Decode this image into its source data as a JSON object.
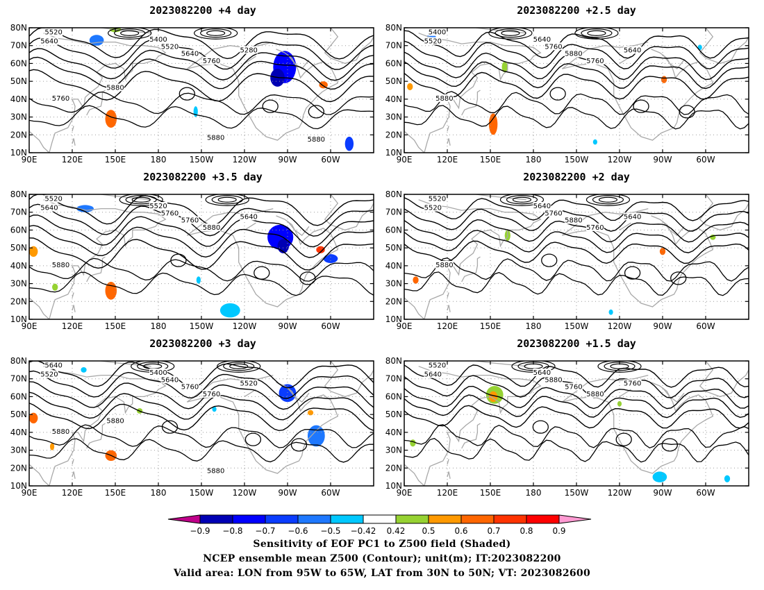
{
  "panels": [
    {
      "id": "p1",
      "title": "2023082200  +4 day",
      "contour_labels": [
        "5520",
        "5640",
        "5400",
        "5280",
        "5520",
        "5640",
        "5760",
        "5760",
        "5880",
        "5880",
        "5880"
      ],
      "shading": [
        {
          "lon": 137,
          "lat": 73,
          "rx": 5,
          "ry": 3,
          "value": -0.6
        },
        {
          "lon": 268,
          "lat": 58,
          "rx": 8,
          "ry": 9,
          "value": -0.8
        },
        {
          "lon": 263,
          "lat": 52,
          "rx": 5,
          "ry": 5,
          "value": -0.9
        },
        {
          "lon": 147,
          "lat": 29,
          "rx": 4,
          "ry": 5,
          "value": 0.7
        },
        {
          "lon": 295,
          "lat": 48,
          "rx": 3,
          "ry": 2,
          "value": 0.7
        },
        {
          "lon": 206,
          "lat": 33,
          "rx": 1.5,
          "ry": 3,
          "value": -0.5
        },
        {
          "lon": 313,
          "lat": 15,
          "rx": 3,
          "ry": 4,
          "value": -0.7
        },
        {
          "lon": 150,
          "lat": 79,
          "rx": 4,
          "ry": 1.5,
          "value": 0.5
        }
      ]
    },
    {
      "id": "p2",
      "title": "2023082200  +2.5 day",
      "contour_labels": [
        "5400",
        "5520",
        "5640",
        "5640",
        "5760",
        "5880",
        "5760",
        "5880"
      ],
      "shading": [
        {
          "lon": 109,
          "lat": 75,
          "rx": 3,
          "ry": 1.5,
          "value": -0.6
        },
        {
          "lon": 160,
          "lat": 58,
          "rx": 2,
          "ry": 3,
          "value": 0.5
        },
        {
          "lon": 152,
          "lat": 26,
          "rx": 3,
          "ry": 6,
          "value": 0.7
        },
        {
          "lon": 271,
          "lat": 51,
          "rx": 2,
          "ry": 2,
          "value": 0.7
        },
        {
          "lon": 94,
          "lat": 47,
          "rx": 2,
          "ry": 2,
          "value": 0.6
        },
        {
          "lon": 296,
          "lat": 69,
          "rx": 1.5,
          "ry": 1.5,
          "value": -0.5
        },
        {
          "lon": 223,
          "lat": 16,
          "rx": 1.5,
          "ry": 1.5,
          "value": -0.42
        }
      ]
    },
    {
      "id": "p3",
      "title": "2023082200  +3.5 day",
      "contour_labels": [
        "5520",
        "5640",
        "5520",
        "5640",
        "5760",
        "5760",
        "5880",
        "5880"
      ],
      "shading": [
        {
          "lon": 129,
          "lat": 72,
          "rx": 6,
          "ry": 2,
          "value": -0.6
        },
        {
          "lon": 265,
          "lat": 56,
          "rx": 9,
          "ry": 7,
          "value": -0.8
        },
        {
          "lon": 267,
          "lat": 51,
          "rx": 4,
          "ry": 4,
          "value": -0.9
        },
        {
          "lon": 300,
          "lat": 44,
          "rx": 5,
          "ry": 2.5,
          "value": -0.7
        },
        {
          "lon": 293,
          "lat": 49,
          "rx": 3,
          "ry": 2,
          "value": 0.8
        },
        {
          "lon": 147,
          "lat": 26,
          "rx": 4,
          "ry": 5,
          "value": 0.7
        },
        {
          "lon": 230,
          "lat": 15,
          "rx": 7,
          "ry": 4,
          "value": -0.5
        },
        {
          "lon": 93,
          "lat": 48,
          "rx": 3,
          "ry": 3,
          "value": 0.6
        },
        {
          "lon": 108,
          "lat": 28,
          "rx": 2,
          "ry": 2,
          "value": 0.5
        },
        {
          "lon": 208,
          "lat": 32,
          "rx": 1.5,
          "ry": 2,
          "value": -0.5
        }
      ]
    },
    {
      "id": "p4",
      "title": "2023082200  +2 day",
      "contour_labels": [
        "5520",
        "5520",
        "5640",
        "5640",
        "5760",
        "5880",
        "5760",
        "5880"
      ],
      "shading": [
        {
          "lon": 162,
          "lat": 57,
          "rx": 2,
          "ry": 3,
          "value": 0.5
        },
        {
          "lon": 98,
          "lat": 32,
          "rx": 2,
          "ry": 2,
          "value": 0.7
        },
        {
          "lon": 270,
          "lat": 48,
          "rx": 2,
          "ry": 2,
          "value": 0.7
        },
        {
          "lon": 234,
          "lat": 14,
          "rx": 1.5,
          "ry": 1.5,
          "value": -0.5
        },
        {
          "lon": 305,
          "lat": 56,
          "rx": 2,
          "ry": 1.5,
          "value": 0.5
        }
      ]
    },
    {
      "id": "p5",
      "title": "2023082200  +3 day",
      "contour_labels": [
        "5640",
        "5520",
        "5400",
        "5520",
        "5640",
        "5760",
        "5760",
        "5880",
        "5880",
        "5880"
      ],
      "shading": [
        {
          "lon": 128,
          "lat": 75,
          "rx": 2,
          "ry": 1.5,
          "value": -0.5
        },
        {
          "lon": 270,
          "lat": 62,
          "rx": 6,
          "ry": 5,
          "value": -0.7
        },
        {
          "lon": 290,
          "lat": 38,
          "rx": 6,
          "ry": 6,
          "value": -0.6
        },
        {
          "lon": 147,
          "lat": 27,
          "rx": 4,
          "ry": 3,
          "value": 0.7
        },
        {
          "lon": 93,
          "lat": 48,
          "rx": 3,
          "ry": 3,
          "value": 0.7
        },
        {
          "lon": 106,
          "lat": 32,
          "rx": 1.5,
          "ry": 2,
          "value": 0.6
        },
        {
          "lon": 219,
          "lat": 53,
          "rx": 1.5,
          "ry": 1.5,
          "value": -0.5
        },
        {
          "lon": 286,
          "lat": 51,
          "rx": 2,
          "ry": 1.5,
          "value": 0.6
        },
        {
          "lon": 167,
          "lat": 52,
          "rx": 2,
          "ry": 1.5,
          "value": 0.5
        }
      ]
    },
    {
      "id": "p6",
      "title": "2023082200  +1.5 day",
      "contour_labels": [
        "5520",
        "5640",
        "5640",
        "5760",
        "5880",
        "5760",
        "5880"
      ],
      "shading": [
        {
          "lon": 153,
          "lat": 61,
          "rx": 6,
          "ry": 5,
          "value": 0.5
        },
        {
          "lon": 152,
          "lat": 60,
          "rx": 3,
          "ry": 3,
          "value": 0.6
        },
        {
          "lon": 268,
          "lat": 15,
          "rx": 5,
          "ry": 3,
          "value": -0.5
        },
        {
          "lon": 96,
          "lat": 34,
          "rx": 2,
          "ry": 2,
          "value": 0.5
        },
        {
          "lon": 240,
          "lat": 56,
          "rx": 1.5,
          "ry": 1.5,
          "value": 0.5
        },
        {
          "lon": 315,
          "lat": 14,
          "rx": 2,
          "ry": 2,
          "value": -0.5
        }
      ]
    }
  ],
  "axes": {
    "lon_range": [
      90,
      330
    ],
    "lat_range": [
      10,
      80
    ],
    "lon_ticks": [
      {
        "v": 90,
        "label": "90E"
      },
      {
        "v": 120,
        "label": "120E"
      },
      {
        "v": 150,
        "label": "150E"
      },
      {
        "v": 180,
        "label": "180"
      },
      {
        "v": 210,
        "label": "150W"
      },
      {
        "v": 240,
        "label": "120W"
      },
      {
        "v": 270,
        "label": "90W"
      },
      {
        "v": 300,
        "label": "60W"
      }
    ],
    "lat_ticks": [
      {
        "v": 10,
        "label": "10N"
      },
      {
        "v": 20,
        "label": "20N"
      },
      {
        "v": 30,
        "label": "30N"
      },
      {
        "v": 40,
        "label": "40N"
      },
      {
        "v": 50,
        "label": "50N"
      },
      {
        "v": 60,
        "label": "60N"
      },
      {
        "v": 70,
        "label": "70N"
      },
      {
        "v": 80,
        "label": "80N"
      }
    ],
    "grid": "dotted"
  },
  "colorbar": {
    "levels": [
      "-0.9",
      "-0.8",
      "-0.7",
      "-0.6",
      "-0.5",
      "-0.42",
      "0.42",
      "0.5",
      "0.6",
      "0.7",
      "0.8",
      "0.9"
    ],
    "colors": [
      "#0000b4",
      "#0000ff",
      "#0a3cff",
      "#1e78ff",
      "#00c8ff",
      "#ffffff",
      "#96d232",
      "#ff9900",
      "#ff6600",
      "#ff3300",
      "#ff0000"
    ],
    "under_color": "#c0008a",
    "over_color": "#ff9ad2",
    "bin_colors": {
      "-0.9": "#0000b4",
      "-0.8": "#0000ff",
      "-0.7": "#0a3cff",
      "-0.6": "#1e78ff",
      "-0.5": "#00c8ff",
      "-0.42": "#00c8ff",
      "0.5": "#96d232",
      "0.6": "#ff9900",
      "0.7": "#ff6600",
      "0.8": "#ff3300",
      "0.9": "#ff0000"
    }
  },
  "captions": {
    "line1": "Sensitivity of EOF PC1 to Z500 field (Shaded)",
    "line2": "NCEP ensemble mean Z500 (Contour); unit(m); IT:2023082200",
    "line3": "Valid area: LON from 95W to 65W, LAT from 30N to 50N; VT: 2023082600"
  }
}
